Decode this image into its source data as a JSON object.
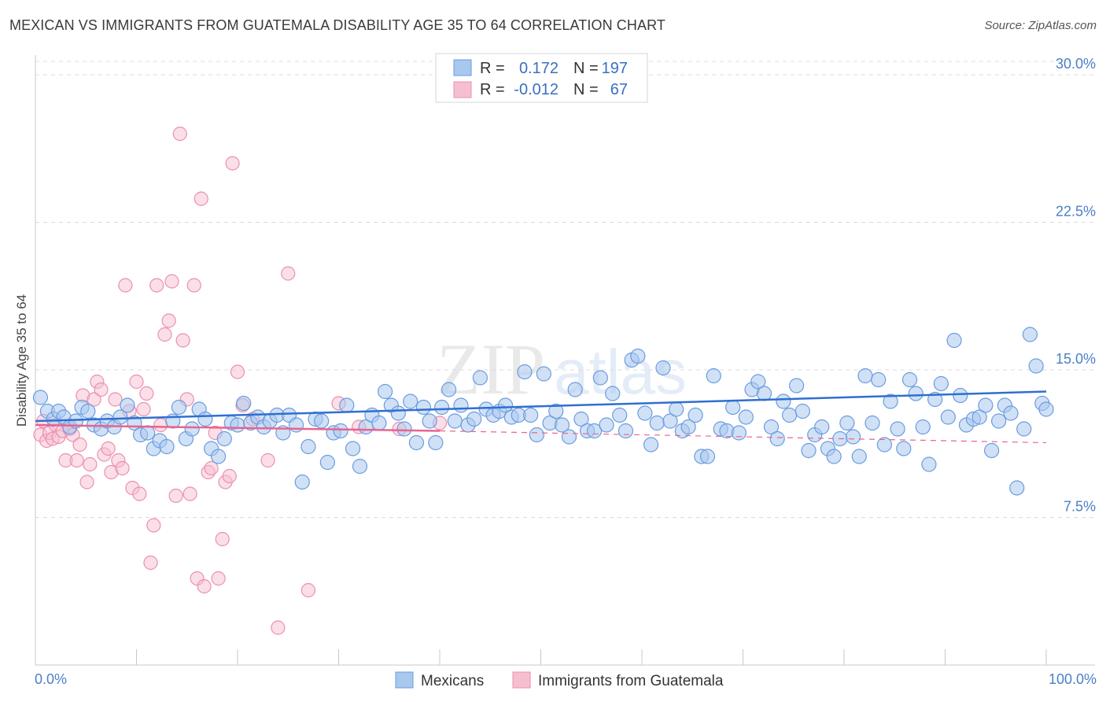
{
  "title": "MEXICAN VS IMMIGRANTS FROM GUATEMALA DISABILITY AGE 35 TO 64 CORRELATION CHART",
  "source": "Source: ZipAtlas.com",
  "watermark": "ZIPatlas",
  "legend": {
    "rows": [
      {
        "r_label": "R =",
        "r_value": "0.172",
        "n_label": "N =",
        "n_value": "197"
      },
      {
        "r_label": "R =",
        "r_value": "-0.012",
        "n_label": "N =",
        "n_value": "67"
      }
    ]
  },
  "bottom_legend": [
    "Mexicans",
    "Immigrants from Guatemala"
  ],
  "colors": {
    "blue_fill": "#a9c8ee",
    "blue_stroke": "#6a9be0",
    "blue_line": "#2f6fd0",
    "pink_fill": "#f6bfd0",
    "pink_stroke": "#ec8fae",
    "pink_line": "#e8648f",
    "grid": "#dcdcdc",
    "tick_text": "#4a7fc7"
  },
  "chart_data": {
    "type": "scatter",
    "title": "MEXICAN VS IMMIGRANTS FROM GUATEMALA DISABILITY AGE 35 TO 64 CORRELATION CHART",
    "xlabel": "",
    "ylabel": "Disability Age 35 to 64",
    "xlim": [
      0,
      100
    ],
    "ylim": [
      0,
      31
    ],
    "x_tick_labels": [
      "0.0%",
      "100.0%"
    ],
    "y_ticks": [
      7.5,
      15.0,
      22.5,
      30.0
    ],
    "y_tick_labels": [
      "7.5%",
      "15.0%",
      "22.5%",
      "30.0%"
    ],
    "grid": true,
    "legend_position": "top-center",
    "series": [
      {
        "name": "Mexicans",
        "r": 0.172,
        "n": 197,
        "trend": {
          "x": [
            0,
            100
          ],
          "y": [
            12.4,
            13.9
          ]
        },
        "points": [
          [
            0.5,
            13.6
          ],
          [
            1.2,
            12.9
          ],
          [
            1.8,
            12.5
          ],
          [
            2.3,
            12.9
          ],
          [
            2.8,
            12.6
          ],
          [
            3.4,
            12.1
          ],
          [
            4.0,
            12.4
          ],
          [
            4.6,
            13.1
          ],
          [
            5.2,
            12.9
          ],
          [
            5.8,
            12.2
          ],
          [
            6.5,
            12.0
          ],
          [
            7.1,
            12.4
          ],
          [
            7.8,
            12.1
          ],
          [
            8.4,
            12.6
          ],
          [
            9.1,
            13.2
          ],
          [
            9.8,
            12.3
          ],
          [
            10.4,
            11.7
          ],
          [
            11.1,
            11.8
          ],
          [
            11.7,
            11.0
          ],
          [
            12.3,
            11.4
          ],
          [
            13.0,
            11.1
          ],
          [
            13.6,
            12.4
          ],
          [
            14.2,
            13.1
          ],
          [
            14.9,
            11.5
          ],
          [
            15.5,
            12.0
          ],
          [
            16.2,
            13.0
          ],
          [
            16.8,
            12.5
          ],
          [
            17.4,
            11.0
          ],
          [
            18.1,
            10.6
          ],
          [
            18.7,
            11.5
          ],
          [
            19.4,
            12.3
          ],
          [
            20.0,
            12.2
          ],
          [
            20.6,
            13.3
          ],
          [
            21.3,
            12.3
          ],
          [
            22.0,
            12.6
          ],
          [
            22.6,
            12.1
          ],
          [
            23.2,
            12.4
          ],
          [
            23.9,
            12.7
          ],
          [
            24.5,
            11.8
          ],
          [
            25.1,
            12.7
          ],
          [
            25.8,
            12.2
          ],
          [
            26.4,
            9.3
          ],
          [
            27.0,
            11.1
          ],
          [
            27.7,
            12.5
          ],
          [
            28.3,
            12.4
          ],
          [
            28.9,
            10.3
          ],
          [
            29.5,
            11.8
          ],
          [
            30.2,
            11.9
          ],
          [
            30.8,
            13.2
          ],
          [
            31.4,
            11.0
          ],
          [
            32.1,
            10.1
          ],
          [
            32.7,
            12.1
          ],
          [
            33.3,
            12.7
          ],
          [
            34.0,
            12.3
          ],
          [
            34.6,
            13.9
          ],
          [
            35.2,
            13.2
          ],
          [
            35.9,
            12.8
          ],
          [
            36.5,
            12.0
          ],
          [
            37.1,
            13.4
          ],
          [
            37.7,
            11.3
          ],
          [
            38.4,
            13.1
          ],
          [
            39.0,
            12.4
          ],
          [
            39.6,
            11.3
          ],
          [
            40.2,
            13.1
          ],
          [
            40.9,
            14.0
          ],
          [
            41.5,
            12.4
          ],
          [
            42.1,
            13.2
          ],
          [
            42.8,
            12.2
          ],
          [
            43.4,
            12.5
          ],
          [
            44.0,
            14.6
          ],
          [
            44.6,
            13.0
          ],
          [
            45.3,
            12.7
          ],
          [
            45.9,
            12.9
          ],
          [
            46.5,
            13.2
          ],
          [
            47.1,
            12.6
          ],
          [
            47.8,
            12.7
          ],
          [
            48.4,
            14.9
          ],
          [
            49.0,
            12.7
          ],
          [
            49.6,
            11.7
          ],
          [
            50.3,
            14.8
          ],
          [
            50.9,
            12.3
          ],
          [
            51.5,
            12.9
          ],
          [
            52.1,
            12.2
          ],
          [
            52.8,
            11.6
          ],
          [
            53.4,
            14.0
          ],
          [
            54.0,
            12.5
          ],
          [
            54.6,
            11.9
          ],
          [
            55.3,
            11.9
          ],
          [
            55.9,
            14.6
          ],
          [
            56.5,
            12.2
          ],
          [
            57.1,
            13.8
          ],
          [
            57.8,
            12.7
          ],
          [
            58.4,
            11.9
          ],
          [
            59.0,
            15.5
          ],
          [
            59.6,
            15.7
          ],
          [
            60.3,
            12.8
          ],
          [
            60.9,
            11.2
          ],
          [
            61.5,
            12.3
          ],
          [
            62.1,
            15.1
          ],
          [
            62.8,
            12.4
          ],
          [
            63.4,
            13.0
          ],
          [
            64.0,
            11.9
          ],
          [
            64.6,
            12.1
          ],
          [
            65.3,
            12.7
          ],
          [
            65.9,
            10.6
          ],
          [
            66.5,
            10.6
          ],
          [
            67.1,
            14.7
          ],
          [
            67.8,
            12.0
          ],
          [
            68.4,
            11.9
          ],
          [
            69.0,
            13.1
          ],
          [
            69.6,
            11.8
          ],
          [
            70.3,
            12.6
          ],
          [
            70.9,
            14.0
          ],
          [
            71.5,
            14.4
          ],
          [
            72.1,
            13.8
          ],
          [
            72.8,
            12.1
          ],
          [
            73.4,
            11.5
          ],
          [
            74.0,
            13.4
          ],
          [
            74.6,
            12.7
          ],
          [
            75.3,
            14.2
          ],
          [
            75.9,
            12.9
          ],
          [
            76.5,
            10.9
          ],
          [
            77.1,
            11.7
          ],
          [
            77.8,
            12.1
          ],
          [
            78.4,
            11.0
          ],
          [
            79.0,
            10.6
          ],
          [
            79.6,
            11.5
          ],
          [
            80.3,
            12.3
          ],
          [
            80.9,
            11.6
          ],
          [
            81.5,
            10.6
          ],
          [
            82.1,
            14.7
          ],
          [
            82.8,
            12.3
          ],
          [
            83.4,
            14.5
          ],
          [
            84.0,
            11.2
          ],
          [
            84.6,
            13.4
          ],
          [
            85.3,
            12.0
          ],
          [
            85.9,
            11.0
          ],
          [
            86.5,
            14.5
          ],
          [
            87.1,
            13.8
          ],
          [
            87.8,
            12.1
          ],
          [
            88.4,
            10.2
          ],
          [
            89.0,
            13.5
          ],
          [
            89.6,
            14.3
          ],
          [
            90.3,
            12.6
          ],
          [
            90.9,
            16.5
          ],
          [
            91.5,
            13.7
          ],
          [
            92.1,
            12.2
          ],
          [
            92.8,
            12.5
          ],
          [
            93.4,
            12.6
          ],
          [
            94.0,
            13.2
          ],
          [
            94.6,
            10.9
          ],
          [
            95.3,
            12.4
          ],
          [
            95.9,
            13.2
          ],
          [
            96.5,
            12.8
          ],
          [
            97.1,
            9.0
          ],
          [
            97.8,
            12.0
          ],
          [
            98.4,
            16.8
          ],
          [
            99.0,
            15.2
          ],
          [
            99.6,
            13.3
          ],
          [
            100.0,
            13.0
          ]
        ]
      },
      {
        "name": "Immigrants from Guatemala",
        "r": -0.012,
        "n": 67,
        "trend": {
          "x": [
            0,
            40
          ],
          "y": [
            12.2,
            11.9
          ]
        },
        "points": [
          [
            0.5,
            11.7
          ],
          [
            0.8,
            12.4
          ],
          [
            1.1,
            11.4
          ],
          [
            1.4,
            11.8
          ],
          [
            1.7,
            11.5
          ],
          [
            2.0,
            12.2
          ],
          [
            2.3,
            11.6
          ],
          [
            2.7,
            11.9
          ],
          [
            3.0,
            10.4
          ],
          [
            3.4,
            12.0
          ],
          [
            3.7,
            11.7
          ],
          [
            4.1,
            10.4
          ],
          [
            4.4,
            11.2
          ],
          [
            4.7,
            13.7
          ],
          [
            5.1,
            9.3
          ],
          [
            5.4,
            10.2
          ],
          [
            5.8,
            13.5
          ],
          [
            6.1,
            14.4
          ],
          [
            6.5,
            14.0
          ],
          [
            6.8,
            10.7
          ],
          [
            7.2,
            11.0
          ],
          [
            7.5,
            9.8
          ],
          [
            7.9,
            13.5
          ],
          [
            8.2,
            10.4
          ],
          [
            8.6,
            10.0
          ],
          [
            8.9,
            19.3
          ],
          [
            9.3,
            12.9
          ],
          [
            9.6,
            9.0
          ],
          [
            10.0,
            14.4
          ],
          [
            10.3,
            8.7
          ],
          [
            10.7,
            13.0
          ],
          [
            11.0,
            13.8
          ],
          [
            11.4,
            5.2
          ],
          [
            11.7,
            7.1
          ],
          [
            12.0,
            19.3
          ],
          [
            12.4,
            12.2
          ],
          [
            12.8,
            16.8
          ],
          [
            13.2,
            17.5
          ],
          [
            13.5,
            19.5
          ],
          [
            13.9,
            8.6
          ],
          [
            14.3,
            27.0
          ],
          [
            14.6,
            16.5
          ],
          [
            15.0,
            13.5
          ],
          [
            15.3,
            8.7
          ],
          [
            15.7,
            19.3
          ],
          [
            16.0,
            4.4
          ],
          [
            16.4,
            23.7
          ],
          [
            16.7,
            4.0
          ],
          [
            17.1,
            9.8
          ],
          [
            17.4,
            10.0
          ],
          [
            17.8,
            11.8
          ],
          [
            18.1,
            4.4
          ],
          [
            18.5,
            6.4
          ],
          [
            18.8,
            9.3
          ],
          [
            19.2,
            9.6
          ],
          [
            19.5,
            25.5
          ],
          [
            20.0,
            14.9
          ],
          [
            20.5,
            13.2
          ],
          [
            21.5,
            12.5
          ],
          [
            23.0,
            10.4
          ],
          [
            24.0,
            1.9
          ],
          [
            25.0,
            19.9
          ],
          [
            27.0,
            3.8
          ],
          [
            30.0,
            13.3
          ],
          [
            32.0,
            12.1
          ],
          [
            36.0,
            12.0
          ],
          [
            40.0,
            12.3
          ]
        ]
      }
    ]
  }
}
